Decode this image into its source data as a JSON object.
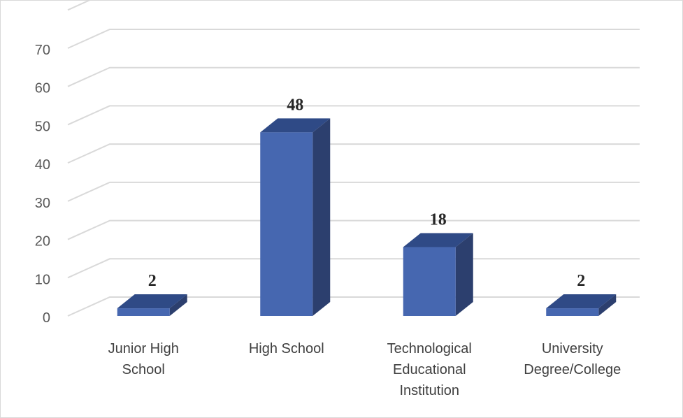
{
  "chart_data": {
    "type": "bar",
    "title": "",
    "xlabel": "",
    "ylabel": "",
    "categories": [
      [
        "Junior High",
        "School"
      ],
      [
        "High School"
      ],
      [
        "Technological",
        "Educational",
        "Institution"
      ],
      [
        "University",
        "Degree/College"
      ]
    ],
    "values": [
      2,
      48,
      18,
      2
    ],
    "data_labels": [
      "2",
      "48",
      "18",
      "2"
    ],
    "ylim": [
      0,
      70
    ],
    "yticks": [
      "0",
      "10",
      "20",
      "30",
      "40",
      "50",
      "60",
      "70"
    ],
    "grid": true,
    "legend": "none",
    "style": "3d-column",
    "colors": {
      "bar_front": "#4667b0",
      "bar_top": "#2f4a86",
      "bar_side": "#2c3f6e",
      "grid": "#d9d9d9",
      "frame": "#d9d9d9"
    }
  }
}
